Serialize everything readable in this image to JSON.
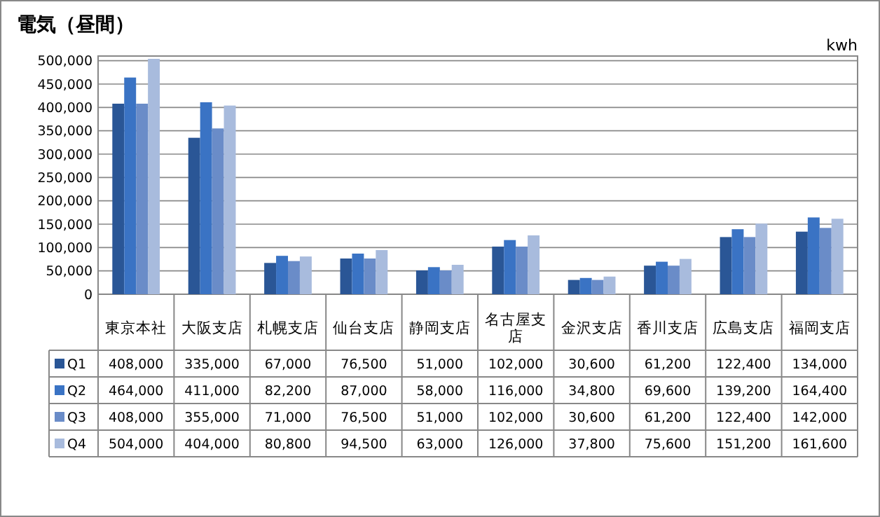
{
  "chart_data": {
    "type": "bar",
    "title": "電気（昼間）",
    "ylabel": "kwh",
    "categories": [
      "東京本社",
      "大阪支店",
      "札幌支店",
      "仙台支店",
      "静岡支店",
      "名古屋支店",
      "金沢支店",
      "香川支店",
      "広島支店",
      "福岡支店"
    ],
    "series": [
      {
        "name": "Q1",
        "color": "#2a5696",
        "values": [
          408000,
          335000,
          67000,
          76500,
          51000,
          102000,
          30600,
          61200,
          122400,
          134000
        ],
        "value_labels": [
          "408,000",
          "335,000",
          "67,000",
          "76,500",
          "51,000",
          "102,000",
          "30,600",
          "61,200",
          "122,400",
          "134,000"
        ]
      },
      {
        "name": "Q2",
        "color": "#3a73c4",
        "values": [
          464000,
          411000,
          82200,
          87000,
          58000,
          116000,
          34800,
          69600,
          139200,
          164400
        ],
        "value_labels": [
          "464,000",
          "411,000",
          "82,200",
          "87,000",
          "58,000",
          "116,000",
          "34,800",
          "69,600",
          "139,200",
          "164,400"
        ]
      },
      {
        "name": "Q3",
        "color": "#6a8cc8",
        "values": [
          408000,
          355000,
          71000,
          76500,
          51000,
          102000,
          30600,
          61200,
          122400,
          142000
        ],
        "value_labels": [
          "408,000",
          "355,000",
          "71,000",
          "76,500",
          "51,000",
          "102,000",
          "30,600",
          "61,200",
          "122,400",
          "142,000"
        ]
      },
      {
        "name": "Q4",
        "color": "#a8bbdd",
        "values": [
          504000,
          404000,
          80800,
          94500,
          63000,
          126000,
          37800,
          75600,
          151200,
          161600
        ],
        "value_labels": [
          "504,000",
          "404,000",
          "80,800",
          "94,500",
          "63,000",
          "126,000",
          "37,800",
          "75,600",
          "151,200",
          "161,600"
        ]
      }
    ],
    "ylim": [
      0,
      510000
    ],
    "yticks": [
      0,
      {
        "value": 50000,
        "label": "50,000"
      },
      {
        "value": 100000,
        "label": "100,000"
      },
      {
        "value": 150000,
        "label": "150,000"
      },
      {
        "value": 200000,
        "label": "200,000"
      },
      {
        "value": 250000,
        "label": "250,000"
      },
      {
        "value": 300000,
        "label": "300,000"
      },
      {
        "value": 350000,
        "label": "350,000"
      },
      {
        "value": 400000,
        "label": "400,000"
      },
      {
        "value": 450000,
        "label": "450,000"
      },
      {
        "value": 500000,
        "label": "500,000"
      }
    ],
    "grid": "y",
    "legend": "bottom left"
  }
}
